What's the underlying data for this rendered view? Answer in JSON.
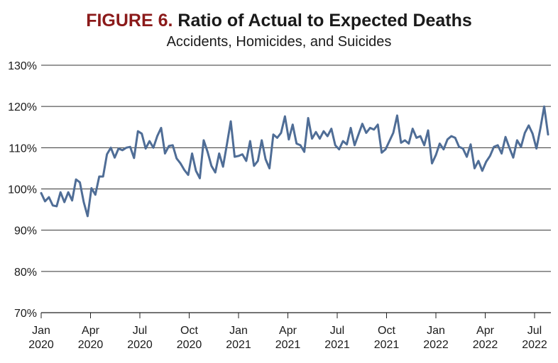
{
  "header": {
    "figure_label": "FIGURE 6.",
    "title": "Ratio of Actual to Expected Deaths",
    "subtitle": "Accidents, Homicides, and Suicides"
  },
  "colors": {
    "line": "#4f6d96",
    "figure_label": "#8b1a1a",
    "grid": "#333333"
  },
  "chart_data": {
    "type": "line",
    "title": "Ratio of Actual to Expected Deaths",
    "subtitle": "Accidents, Homicides, and Suicides",
    "xlabel": "",
    "ylabel": "",
    "ylim": [
      70,
      130
    ],
    "yticks": [
      "70%",
      "80%",
      "90%",
      "100%",
      "110%",
      "120%",
      "130%"
    ],
    "ytick_values": [
      70,
      80,
      90,
      100,
      110,
      120,
      130
    ],
    "xticks": [
      {
        "month": 0,
        "line1": "Jan",
        "line2": "2020"
      },
      {
        "month": 3,
        "line1": "Apr",
        "line2": "2020"
      },
      {
        "month": 6,
        "line1": "Jul",
        "line2": "2020"
      },
      {
        "month": 9,
        "line1": "Oct",
        "line2": "2020"
      },
      {
        "month": 12,
        "line1": "Jan",
        "line2": "2021"
      },
      {
        "month": 15,
        "line1": "Apr",
        "line2": "2021"
      },
      {
        "month": 18,
        "line1": "Jul",
        "line2": "2021"
      },
      {
        "month": 21,
        "line1": "Oct",
        "line2": "2021"
      },
      {
        "month": 24,
        "line1": "Jan",
        "line2": "2022"
      },
      {
        "month": 27,
        "line1": "Apr",
        "line2": "2022"
      },
      {
        "month": 30,
        "line1": "Jul",
        "line2": "2022"
      }
    ],
    "grid": true,
    "series": [
      {
        "values": [
          99,
          97,
          98,
          96,
          95.8,
          99.2,
          96.8,
          99.2,
          97.2,
          102.3,
          101.6,
          96.8,
          93.4,
          100.2,
          98.6,
          103,
          103,
          108.4,
          110,
          107.6,
          109.8,
          109.4,
          110,
          110.2,
          107.5,
          114,
          113.4,
          109.8,
          111.6,
          110,
          112.8,
          114.8,
          108.6,
          110.4,
          110.6,
          107.4,
          106.2,
          104.6,
          103.4,
          108.6,
          104.4,
          102.6,
          111.8,
          109,
          105.6,
          104,
          108.6,
          105.4,
          110.8,
          116.4,
          107.8,
          108,
          108.4,
          106.8,
          111.6,
          105.6,
          106.8,
          111.8,
          107.2,
          105,
          113.2,
          112.4,
          113.6,
          117.6,
          112,
          115.6,
          111,
          110.6,
          109,
          117.2,
          112.2,
          113.8,
          112.2,
          114,
          112.8,
          114.6,
          110.6,
          109.6,
          111.6,
          110.8,
          114.8,
          110.6,
          113.2,
          115.8,
          113.6,
          114.8,
          114.4,
          115.6,
          108.8,
          109.6,
          111.6,
          113.6,
          117.8,
          111.2,
          111.8,
          111,
          114.6,
          112.4,
          112.8,
          110.6,
          114.2,
          106.2,
          108.2,
          111,
          109.6,
          112,
          112.8,
          112.4,
          110.2,
          109.8,
          107.8,
          110.8,
          105,
          106.8,
          104.4,
          106.6,
          108,
          110.2,
          110.6,
          108.6,
          112.6,
          110,
          107.6,
          111.8,
          110.2,
          113.6,
          115.4,
          113.4,
          109.8,
          114.6,
          120,
          113.2
        ]
      }
    ]
  }
}
